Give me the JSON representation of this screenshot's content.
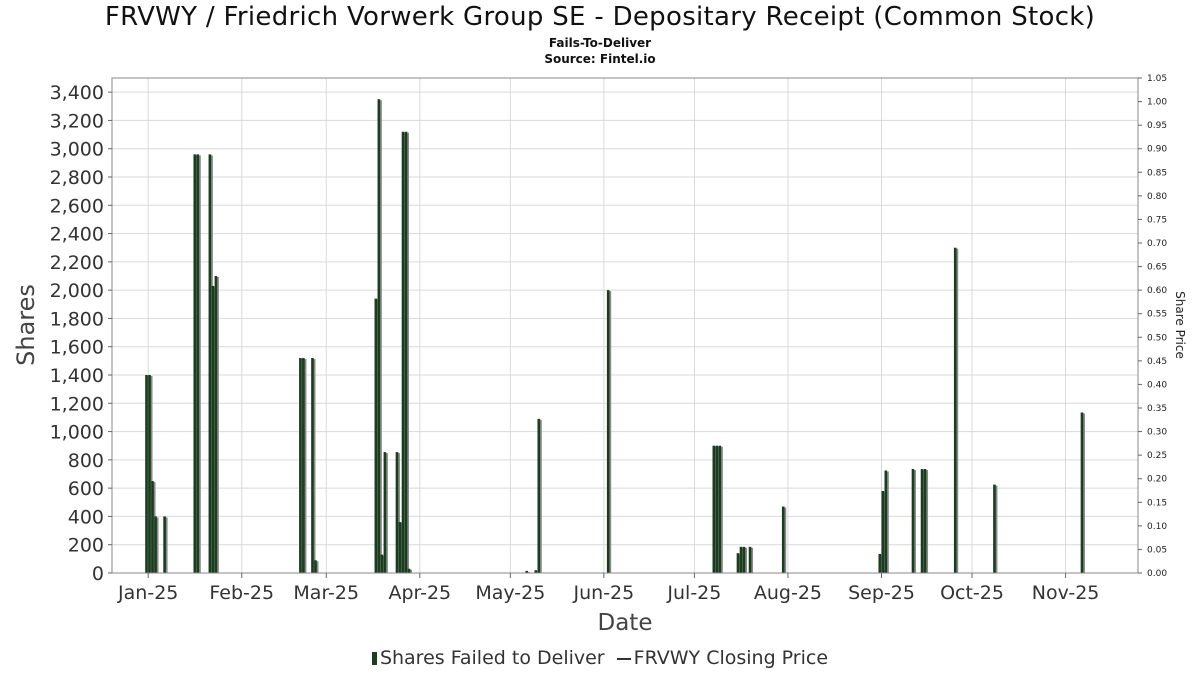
{
  "title": "FRVWY / Friedrich Vorwerk Group SE - Depositary Receipt (Common Stock)",
  "subtitle": "Fails-To-Deliver",
  "source": "Source: Fintel.io",
  "legend": {
    "bars_label": "Shares Failed to Deliver",
    "line_label": "FRVWY Closing Price"
  },
  "colors": {
    "bar": "#1a3d1f",
    "bar_shadow": "#8a8a8a",
    "grid": "#d9d9d9",
    "plot_border": "#888888"
  },
  "chart_data": {
    "type": "bar",
    "xlabel": "Date",
    "ylabel": "Shares",
    "y2label": "Share Price",
    "ylim": [
      0,
      3500
    ],
    "y2lim": [
      0,
      1.05
    ],
    "yticks": [
      0,
      200,
      400,
      600,
      800,
      1000,
      1200,
      1400,
      1600,
      1800,
      2000,
      2200,
      2400,
      2600,
      2800,
      3000,
      3200,
      3400
    ],
    "ytick_labels": [
      "0",
      "200",
      "400",
      "600",
      "800",
      "1,000",
      "1,200",
      "1,400",
      "1,600",
      "1,800",
      "2,000",
      "2,200",
      "2,400",
      "2,600",
      "2,800",
      "3,000",
      "3,200",
      "3,400"
    ],
    "y2ticks": [
      "0.00",
      "0.05",
      "0.10",
      "0.15",
      "0.20",
      "0.25",
      "0.30",
      "0.35",
      "0.40",
      "0.45",
      "0.50",
      "0.55",
      "0.60",
      "0.65",
      "0.70",
      "0.75",
      "0.80",
      "0.85",
      "0.90",
      "0.95",
      "1.00",
      "1.05"
    ],
    "xlim": [
      "2024-12-20",
      "2025-11-25"
    ],
    "xticks": [
      {
        "date": "2025-01-01",
        "label": "Jan-25"
      },
      {
        "date": "2025-02-01",
        "label": "Feb-25"
      },
      {
        "date": "2025-03-01",
        "label": "Mar-25"
      },
      {
        "date": "2025-04-01",
        "label": "Apr-25"
      },
      {
        "date": "2025-05-01",
        "label": "May-25"
      },
      {
        "date": "2025-06-01",
        "label": "Jun-25"
      },
      {
        "date": "2025-07-01",
        "label": "Jul-25"
      },
      {
        "date": "2025-08-01",
        "label": "Aug-25"
      },
      {
        "date": "2025-09-01",
        "label": "Sep-25"
      },
      {
        "date": "2025-10-01",
        "label": "Oct-25"
      },
      {
        "date": "2025-11-01",
        "label": "Nov-25"
      }
    ],
    "grid": true,
    "legend_position": "bottom",
    "series": [
      {
        "name": "Shares Failed to Deliver",
        "points": [
          {
            "date": "2024-12-31",
            "value": 1400
          },
          {
            "date": "2025-01-01",
            "value": 1400
          },
          {
            "date": "2025-01-02",
            "value": 650
          },
          {
            "date": "2025-01-03",
            "value": 400
          },
          {
            "date": "2025-01-06",
            "value": 400
          },
          {
            "date": "2025-01-16",
            "value": 2960
          },
          {
            "date": "2025-01-17",
            "value": 2960
          },
          {
            "date": "2025-01-21",
            "value": 2960
          },
          {
            "date": "2025-01-22",
            "value": 2030
          },
          {
            "date": "2025-01-23",
            "value": 2100
          },
          {
            "date": "2025-02-20",
            "value": 1520
          },
          {
            "date": "2025-02-21",
            "value": 1520
          },
          {
            "date": "2025-02-24",
            "value": 1520
          },
          {
            "date": "2025-02-25",
            "value": 90
          },
          {
            "date": "2025-03-17",
            "value": 1940
          },
          {
            "date": "2025-03-18",
            "value": 3350
          },
          {
            "date": "2025-03-19",
            "value": 130
          },
          {
            "date": "2025-03-20",
            "value": 855
          },
          {
            "date": "2025-03-24",
            "value": 855
          },
          {
            "date": "2025-03-25",
            "value": 360
          },
          {
            "date": "2025-03-26",
            "value": 3120
          },
          {
            "date": "2025-03-27",
            "value": 3120
          },
          {
            "date": "2025-03-28",
            "value": 30
          },
          {
            "date": "2025-05-06",
            "value": 15
          },
          {
            "date": "2025-05-09",
            "value": 20
          },
          {
            "date": "2025-05-10",
            "value": 1090
          },
          {
            "date": "2025-06-02",
            "value": 2000
          },
          {
            "date": "2025-07-07",
            "value": 900
          },
          {
            "date": "2025-07-08",
            "value": 900
          },
          {
            "date": "2025-07-09",
            "value": 900
          },
          {
            "date": "2025-07-15",
            "value": 140
          },
          {
            "date": "2025-07-16",
            "value": 185
          },
          {
            "date": "2025-07-17",
            "value": 185
          },
          {
            "date": "2025-07-19",
            "value": 185
          },
          {
            "date": "2025-07-30",
            "value": 470
          },
          {
            "date": "2025-08-31",
            "value": 135
          },
          {
            "date": "2025-09-01",
            "value": 580
          },
          {
            "date": "2025-09-02",
            "value": 725
          },
          {
            "date": "2025-09-11",
            "value": 735
          },
          {
            "date": "2025-09-14",
            "value": 735
          },
          {
            "date": "2025-09-15",
            "value": 735
          },
          {
            "date": "2025-09-25",
            "value": 2300
          },
          {
            "date": "2025-10-08",
            "value": 625
          },
          {
            "date": "2025-11-06",
            "value": 1135
          }
        ]
      }
    ]
  }
}
